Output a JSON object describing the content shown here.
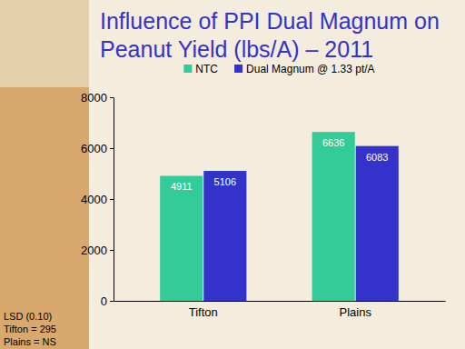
{
  "chart_data": {
    "type": "bar",
    "title": "Influence of PPI Dual Magnum on Peanut Yield (lbs/A) – 2011",
    "categories": [
      "Tifton",
      "Plains"
    ],
    "series": [
      {
        "name": "NTC",
        "color": "#33cc99",
        "values": [
          4911,
          6636
        ]
      },
      {
        "name": "Dual Magnum @ 1.33 pt/A",
        "color": "#3333cc",
        "values": [
          5106,
          6083
        ]
      }
    ],
    "ylim": [
      0,
      8000
    ],
    "yticks": [
      0,
      2000,
      4000,
      6000,
      8000
    ],
    "grid": false,
    "data_labels": true,
    "legend": "top",
    "annotations": [
      "LSD (0.10)",
      "Tifton = 295",
      "Plains = NS"
    ]
  }
}
